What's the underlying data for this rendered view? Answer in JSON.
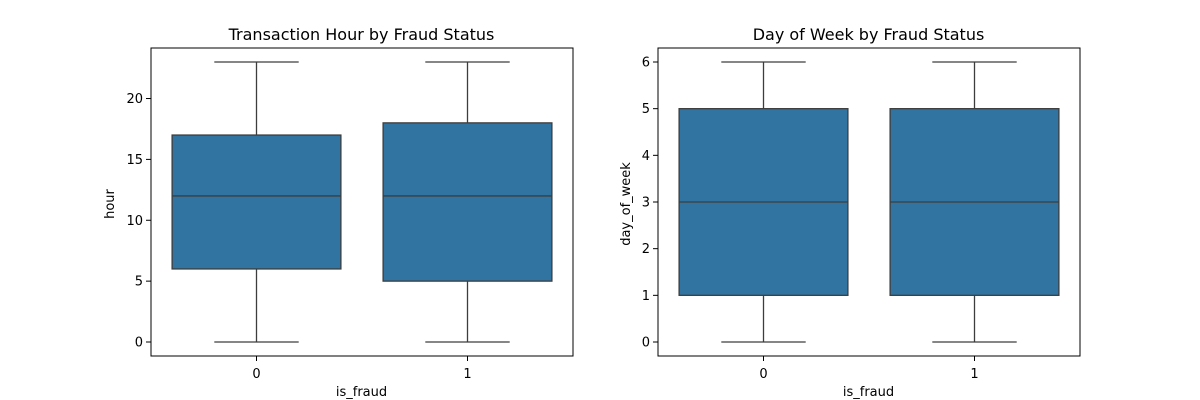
{
  "chart_data": [
    {
      "type": "box",
      "title": "Transaction Hour by Fraud Status",
      "xlabel": "is_fraud",
      "ylabel": "hour",
      "categories": [
        "0",
        "1"
      ],
      "yticks": [
        0,
        5,
        10,
        15,
        20
      ],
      "ylim": [
        -1.15,
        24.15
      ],
      "boxes": [
        {
          "category": "0",
          "min": 0,
          "q1": 6,
          "median": 12,
          "q3": 17,
          "max": 23
        },
        {
          "category": "1",
          "min": 0,
          "q1": 5,
          "median": 12,
          "q3": 18,
          "max": 23
        }
      ],
      "box_color": "#3274a1",
      "line_color": "#3d3d3d"
    },
    {
      "type": "box",
      "title": "Day of Week by Fraud Status",
      "xlabel": "is_fraud",
      "ylabel": "day_of_week",
      "categories": [
        "0",
        "1"
      ],
      "yticks": [
        0,
        1,
        2,
        3,
        4,
        5,
        6
      ],
      "ylim": [
        -0.3,
        6.3
      ],
      "boxes": [
        {
          "category": "0",
          "min": 0,
          "q1": 1,
          "median": 3,
          "q3": 5,
          "max": 6
        },
        {
          "category": "1",
          "min": 0,
          "q1": 1,
          "median": 3,
          "q3": 5,
          "max": 6
        }
      ],
      "box_color": "#3274a1",
      "line_color": "#3d3d3d"
    }
  ]
}
